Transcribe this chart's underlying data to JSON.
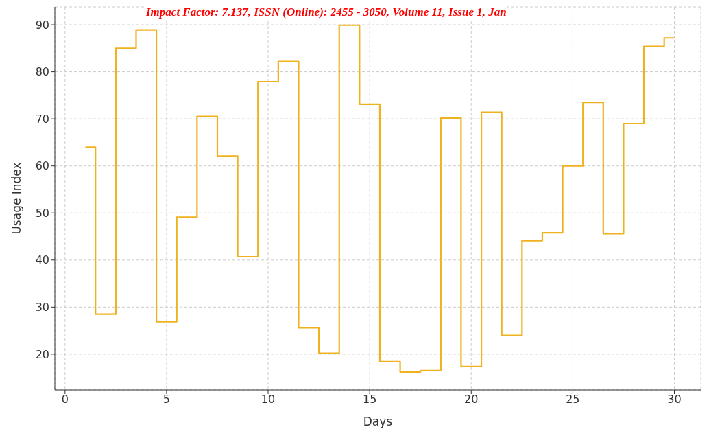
{
  "chart_data": {
    "type": "step",
    "xlabel": "Days",
    "ylabel": "Usage Index",
    "annotations": [
      "Impact Factor: 7.137, ISSN (Online): 2455 - 3050, Volume 11, Issue 1, Jan"
    ],
    "x": [
      1,
      2,
      3,
      4,
      5,
      6,
      7,
      8,
      9,
      10,
      11,
      12,
      13,
      14,
      15,
      16,
      17,
      18,
      19,
      20,
      21,
      22,
      23,
      24,
      25,
      26,
      27,
      28,
      29,
      30
    ],
    "series": [
      {
        "color": "#f0b11f",
        "values": [
          64,
          28.5,
          85,
          88.9,
          26.9,
          49.1,
          70.5,
          62.1,
          40.7,
          77.9,
          82.2,
          25.6,
          20.2,
          89.9,
          73.1,
          18.4,
          16.2,
          16.5,
          70.2,
          17.4,
          71.4,
          24,
          44.1,
          45.8,
          60,
          73.5,
          45.6,
          69,
          85.4,
          87.2
        ]
      }
    ],
    "xlim": [
      -0.5,
      31.3
    ],
    "xticks": [
      0,
      5,
      10,
      15,
      20,
      25,
      30
    ],
    "ylim": [
      12.4,
      93.8
    ],
    "yticks": [
      20,
      30,
      40,
      50,
      60,
      70,
      80,
      90
    ],
    "grid": true
  }
}
